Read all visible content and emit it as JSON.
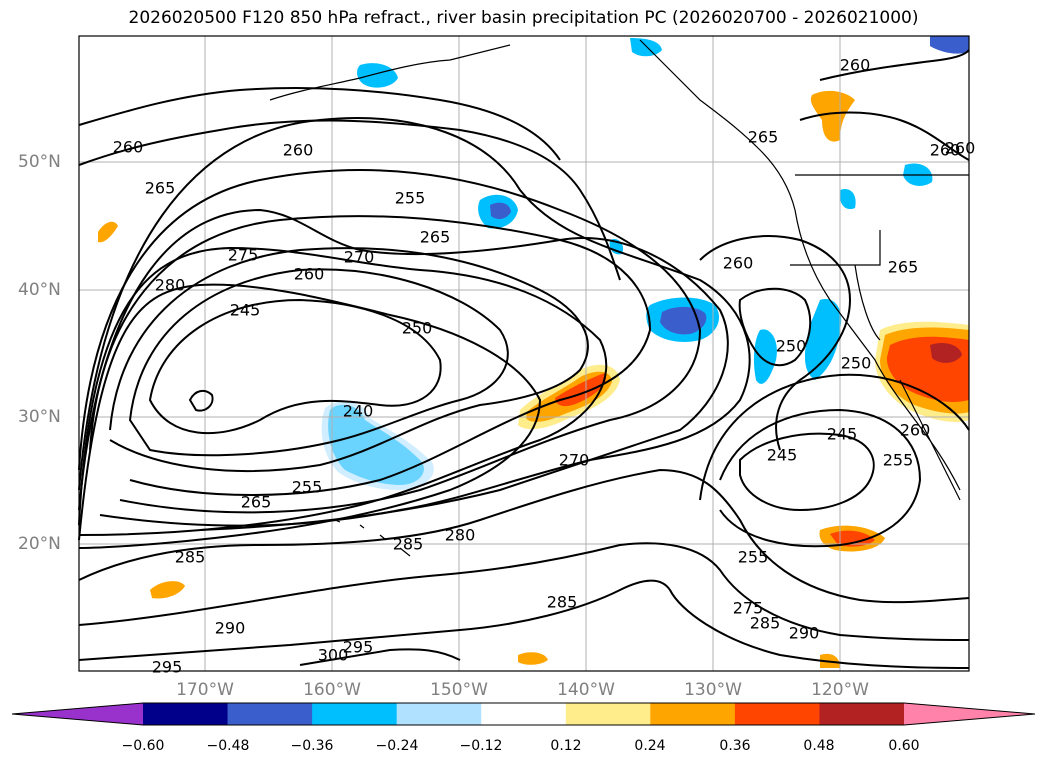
{
  "title": "2026020500 F120 850 hPa refract., river basin precipitation PC (2026020700 - 2026021000)",
  "lat_labels": [
    "50°N",
    "40°N",
    "30°N",
    "20°N"
  ],
  "lon_labels": [
    "170°W",
    "160°W",
    "150°W",
    "140°W",
    "130°W",
    "120°W"
  ],
  "colorbar": {
    "ticks": [
      "−0.60",
      "−0.48",
      "−0.36",
      "−0.24",
      "−0.12",
      "0.12",
      "0.24",
      "0.36",
      "0.48",
      "0.60"
    ],
    "colors": [
      "#9932cc",
      "#00008b",
      "#3a5fcd",
      "#00bfff",
      "#b0e2ff",
      "#ffffff",
      "#ffec8b",
      "#ffa500",
      "#ff4500",
      "#b22222",
      "#ff82ab"
    ]
  },
  "contour_labels": [
    {
      "text": "260"
    },
    {
      "text": "265"
    },
    {
      "text": "260"
    },
    {
      "text": "255"
    },
    {
      "text": "265"
    },
    {
      "text": "260"
    },
    {
      "text": "275"
    },
    {
      "text": "270"
    },
    {
      "text": "280"
    },
    {
      "text": "260"
    },
    {
      "text": "245"
    },
    {
      "text": "250"
    },
    {
      "text": "240"
    },
    {
      "text": "255"
    },
    {
      "text": "265"
    },
    {
      "text": "270"
    },
    {
      "text": "285"
    },
    {
      "text": "280"
    },
    {
      "text": "285"
    },
    {
      "text": "285"
    },
    {
      "text": "290"
    },
    {
      "text": "295"
    },
    {
      "text": "300"
    },
    {
      "text": "295"
    },
    {
      "text": "260"
    },
    {
      "text": "265"
    },
    {
      "text": "260"
    },
    {
      "text": "260"
    },
    {
      "text": "265"
    },
    {
      "text": "250"
    },
    {
      "text": "250"
    },
    {
      "text": "245"
    },
    {
      "text": "245"
    },
    {
      "text": "255"
    },
    {
      "text": "255"
    },
    {
      "text": "275"
    },
    {
      "text": "285"
    },
    {
      "text": "290"
    },
    {
      "text": "260"
    }
  ]
}
